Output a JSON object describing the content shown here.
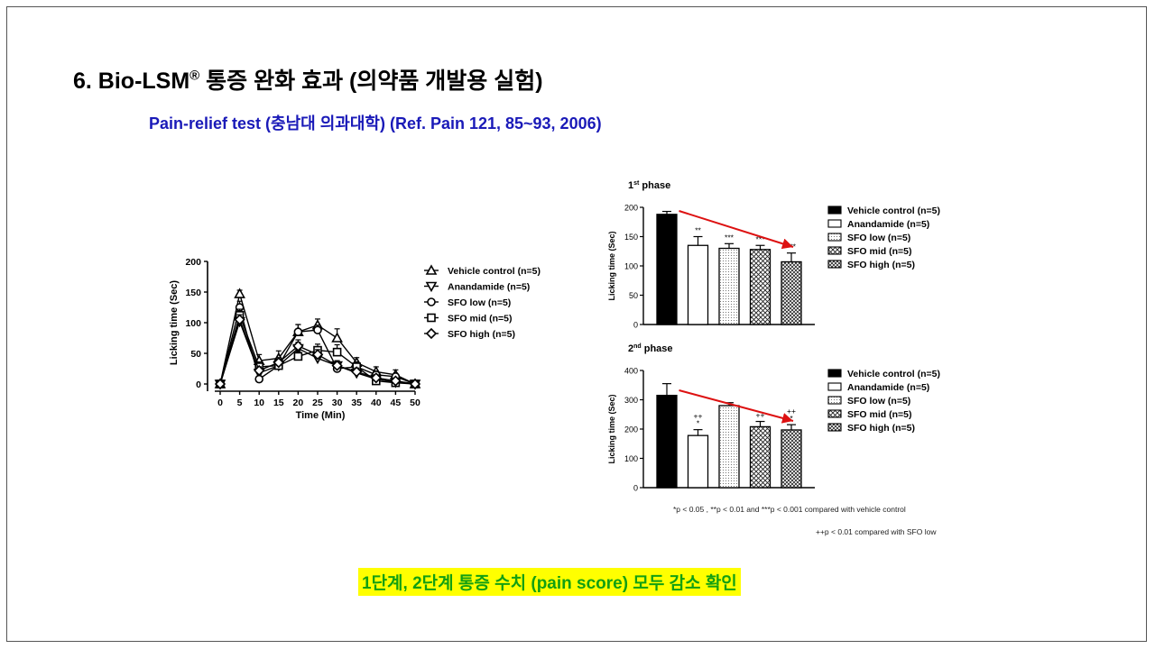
{
  "slide": {
    "title_main": "6. Bio-LSM",
    "title_reg": "®",
    "title_rest": " 통증 완화 효과 (의약품 개발용 실험)",
    "subtitle": "Pain-relief test (충남대 의과대학) (Ref. Pain 121, 85~93, 2006)",
    "conclusion": "1단계, 2단계 통증 수치 (pain score) 모두 감소 확인",
    "footnote1": "*p < 0.05 , **p < 0.01 and ***p < 0.001 compared with vehicle control",
    "footnote2": "++p < 0.01 compared with SFO low",
    "colors": {
      "subtitle": "#1a1ab8",
      "conclusion_text": "#12a012",
      "conclusion_bg": "#ffff00",
      "arrow": "#dd1111"
    }
  },
  "chart_data": [
    {
      "type": "line",
      "title": "",
      "xlabel": "Time (Min)",
      "ylabel": "Licking time (Sec)",
      "x": [
        0,
        5,
        10,
        15,
        20,
        25,
        30,
        35,
        40,
        45,
        50
      ],
      "xticks": [
        "0",
        "5",
        "10",
        "15",
        "20",
        "25",
        "30",
        "35",
        "40",
        "45",
        "50"
      ],
      "yticks": [
        "0",
        "50",
        "100",
        "150",
        "200"
      ],
      "ylim": [
        0,
        200
      ],
      "legend_position": "right",
      "series": [
        {
          "name": "Vehicle control (n=5)",
          "marker": "triangle-up",
          "values": [
            0,
            147,
            38,
            42,
            85,
            96,
            75,
            35,
            20,
            15,
            0
          ],
          "errors": [
            0,
            6,
            10,
            12,
            12,
            10,
            15,
            8,
            8,
            8,
            0
          ]
        },
        {
          "name": "Anandamide (n=5)",
          "marker": "triangle-down",
          "values": [
            0,
            102,
            18,
            30,
            58,
            42,
            30,
            18,
            8,
            3,
            0
          ],
          "errors": [
            0,
            10,
            6,
            8,
            10,
            8,
            8,
            6,
            4,
            2,
            0
          ]
        },
        {
          "name": "SFO low (n=5)",
          "marker": "circle",
          "values": [
            0,
            125,
            8,
            30,
            85,
            88,
            25,
            28,
            15,
            12,
            0
          ],
          "errors": [
            0,
            10,
            5,
            10,
            12,
            8,
            8,
            8,
            6,
            5,
            0
          ]
        },
        {
          "name": "SFO mid (n=5)",
          "marker": "square",
          "values": [
            0,
            112,
            28,
            30,
            45,
            55,
            52,
            28,
            5,
            2,
            0
          ],
          "errors": [
            0,
            10,
            8,
            10,
            8,
            10,
            12,
            8,
            3,
            2,
            0
          ]
        },
        {
          "name": "SFO high (n=5)",
          "marker": "diamond",
          "values": [
            0,
            105,
            22,
            35,
            62,
            48,
            30,
            20,
            10,
            5,
            0
          ],
          "errors": [
            0,
            8,
            6,
            8,
            10,
            8,
            8,
            6,
            5,
            3,
            0
          ]
        }
      ]
    },
    {
      "type": "bar",
      "title": "1st phase",
      "title_main": "1",
      "title_sup": "st",
      "title_rest": " phase",
      "ylabel": "Licking time (Sec)",
      "yticks": [
        "0",
        "50",
        "100",
        "150",
        "200"
      ],
      "ylim": [
        0,
        200
      ],
      "categories": [
        "Vehicle control (n=5)",
        "Anandamide (n=5)",
        "SFO low (n=5)",
        "SFO mid (n=5)",
        "SFO high (n=5)"
      ],
      "values": [
        188,
        135,
        130,
        128,
        107
      ],
      "errors": [
        5,
        15,
        8,
        7,
        15
      ],
      "annotations": [
        "",
        "**",
        "***",
        "***",
        "***"
      ]
    },
    {
      "type": "bar",
      "title": "2nd phase",
      "title_main": "2",
      "title_sup": "nd",
      "title_rest": " phase",
      "ylabel": "Licking time (Sec)",
      "yticks": [
        "0",
        "100",
        "200",
        "300",
        "400"
      ],
      "ylim": [
        0,
        400
      ],
      "categories": [
        "Vehicle control (n=5)",
        "Anandamide (n=5)",
        "SFO low (n=5)",
        "SFO mid (n=5)",
        "SFO high (n=5)"
      ],
      "values": [
        315,
        178,
        280,
        208,
        197
      ],
      "errors": [
        40,
        20,
        10,
        18,
        18
      ],
      "annotations": [
        "",
        "++\n*",
        "",
        "++",
        "++\n*"
      ]
    }
  ]
}
